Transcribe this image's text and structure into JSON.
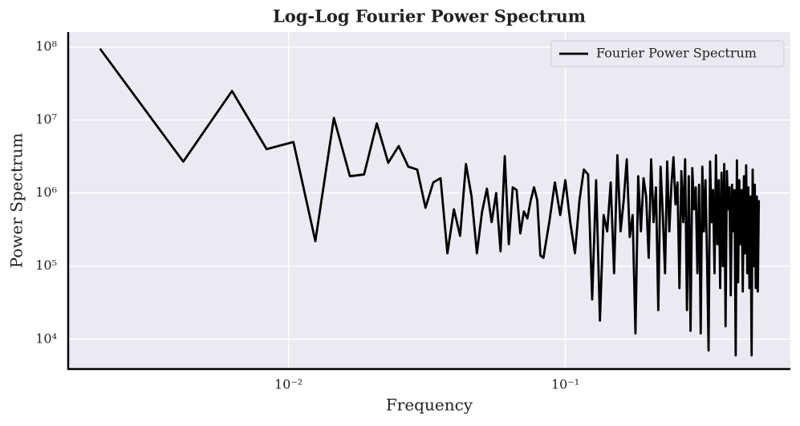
{
  "chart_data": {
    "type": "line",
    "title": "Log-Log Fourier Power Spectrum",
    "xlabel": "Frequency",
    "ylabel": "Power Spectrum",
    "xscale": "log",
    "yscale": "log",
    "grid": true,
    "legend": "upper right",
    "xlim": [
      0.0016,
      0.65
    ],
    "ylim": [
      3900,
      160000000
    ],
    "xticks": [
      {
        "value": 0.01,
        "label": "10⁻²"
      },
      {
        "value": 0.1,
        "label": "10⁻¹"
      }
    ],
    "yticks": [
      {
        "value": 10000,
        "label": "10⁴"
      },
      {
        "value": 100000,
        "label": "10⁵"
      },
      {
        "value": 1000000,
        "label": "10⁶"
      },
      {
        "value": 10000000,
        "label": "10⁷"
      },
      {
        "value": 100000000,
        "label": "10⁸"
      }
    ],
    "x": [
      0.0020833,
      0.0041667,
      0.00625,
      0.0083333,
      0.0104167,
      0.0125,
      0.0145833,
      0.0166667,
      0.01875,
      0.0208333,
      0.0229167,
      0.025,
      0.0270833,
      0.0291667,
      0.03125,
      0.0333333,
      0.0354167,
      0.0375,
      0.0395833,
      0.0416667,
      0.04375,
      0.0458333,
      0.0479167,
      0.05,
      0.0520833,
      0.0541667,
      0.05625,
      0.0583333,
      0.0604167,
      0.0625,
      0.0645833,
      0.0666667,
      0.06875,
      0.0708333,
      0.0729167,
      0.075,
      0.0770833,
      0.0791667,
      0.08125,
      0.0833333,
      0.0875,
      0.0916667,
      0.0958333,
      0.1,
      0.1041667,
      0.1083333,
      0.1125,
      0.1166667,
      0.1208333,
      0.125,
      0.1291667,
      0.1333333,
      0.1375,
      0.1416667,
      0.1458333,
      0.15,
      0.1541667,
      0.1583333,
      0.1625,
      0.1666667,
      0.1708333,
      0.175,
      0.1791667,
      0.1833333,
      0.1875,
      0.1916667,
      0.1958333,
      0.2,
      0.2041667,
      0.2083333,
      0.2125,
      0.2166667,
      0.2208333,
      0.225,
      0.2291667,
      0.2333333,
      0.2375,
      0.2416667,
      0.2458333,
      0.25,
      0.2541667,
      0.2583333,
      0.2625,
      0.2666667,
      0.2708333,
      0.275,
      0.2791667,
      0.2833333,
      0.2875,
      0.2916667,
      0.2958333,
      0.3,
      0.3041667,
      0.3083333,
      0.3125,
      0.3166667,
      0.3208333,
      0.325,
      0.3291667,
      0.3333333,
      0.3375,
      0.3416667,
      0.3458333,
      0.35,
      0.3541667,
      0.3583333,
      0.3625,
      0.3666667,
      0.3708333,
      0.375,
      0.3791667,
      0.3833333,
      0.3875,
      0.3916667,
      0.3958333,
      0.4,
      0.4041667,
      0.4083333,
      0.4125,
      0.4166667,
      0.4208333,
      0.425,
      0.4291667,
      0.4333333,
      0.4375,
      0.4416667,
      0.4458333,
      0.45,
      0.4541667,
      0.4583333,
      0.4625,
      0.4666667,
      0.4708333,
      0.475,
      0.4791667,
      0.4833333,
      0.4875,
      0.4916667,
      0.4958333,
      0.5
    ],
    "series": [
      {
        "name": "Fourier Power Spectrum",
        "color": "#000000",
        "values": [
          95000000.0,
          2700000.0,
          25000000.0,
          4000000.0,
          5000000.0,
          220000.0,
          10700000.0,
          1700000.0,
          1800000.0,
          9000000.0,
          2600000.0,
          4400000.0,
          2300000.0,
          2100000.0,
          630000.0,
          1400000.0,
          1600000.0,
          150000.0,
          600000.0,
          260000.0,
          2500000.0,
          900000.0,
          150000.0,
          550000.0,
          1150000.0,
          400000.0,
          1000000.0,
          160000.0,
          3200000.0,
          200000.0,
          1200000.0,
          1100000.0,
          280000.0,
          560000.0,
          450000.0,
          800000.0,
          1200000.0,
          800000.0,
          140000.0,
          130000.0,
          400000.0,
          1400000.0,
          500000.0,
          1500000.0,
          400000.0,
          150000.0,
          800000.0,
          2100000.0,
          1800000.0,
          35000.0,
          1500000.0,
          18000.0,
          500000.0,
          300000.0,
          1400000.0,
          80000.0,
          3300000.0,
          300000.0,
          800000.0,
          2900000.0,
          250000.0,
          500000.0,
          12000.0,
          1700000.0,
          300000.0,
          1600000.0,
          900000.0,
          130000.0,
          2900000.0,
          400000.0,
          1200000.0,
          25000.0,
          2300000.0,
          500000.0,
          80000.0,
          2700000.0,
          300000.0,
          1300000.0,
          3100000.0,
          700000.0,
          1400000.0,
          50000.0,
          2000000.0,
          400000.0,
          2900000.0,
          25000.0,
          1700000.0,
          13000.0,
          2200000.0,
          600000.0,
          1200000.0,
          80000.0,
          1300000.0,
          12000.0,
          2300000.0,
          300000.0,
          1500000.0,
          130000.0,
          7000.0,
          2700000.0,
          400000.0,
          1100000.0,
          80000.0,
          3300000.0,
          200000.0,
          1500000.0,
          50000.0,
          1900000.0,
          100000.0,
          2500000.0,
          15000.0,
          2000000.0,
          600000.0,
          1200000.0,
          40000.0,
          1300000.0,
          300000.0,
          1100000.0,
          6000.0,
          2800000.0,
          60000.0,
          1500000.0,
          200000.0,
          1100000.0,
          45000.0,
          1700000.0,
          150000.0,
          2400000.0,
          80000.0,
          1200000.0,
          50000.0,
          900000.0,
          6000.0,
          2100000.0,
          100000.0,
          1300000.0,
          50000.0,
          900000.0,
          45000.0,
          800000.0
        ]
      }
    ]
  }
}
